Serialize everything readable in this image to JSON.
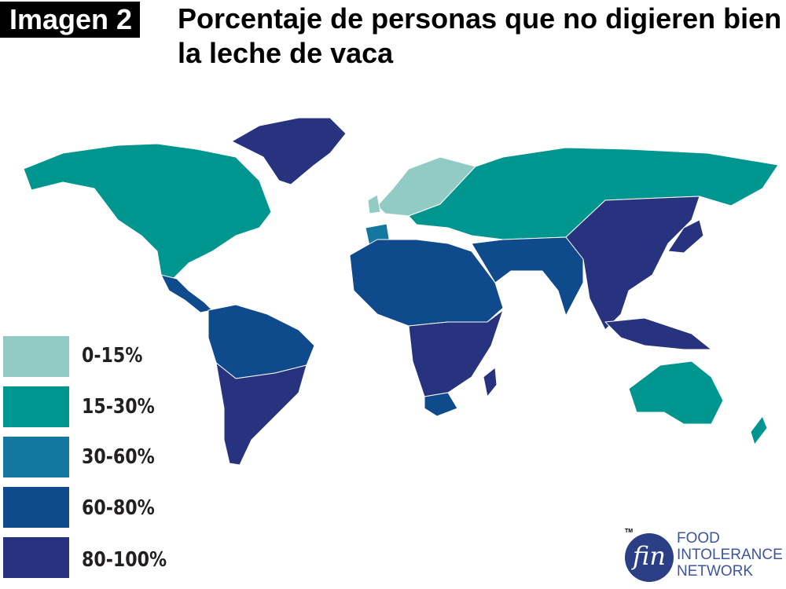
{
  "header": {
    "badge": "Imagen 2",
    "title": "Porcentaje de personas que no digieren bien la leche de vaca"
  },
  "legend": [
    {
      "label": "0-15%",
      "color": "#92cbc4"
    },
    {
      "label": "15-30%",
      "color": "#009690"
    },
    {
      "label": "30-60%",
      "color": "#13779f"
    },
    {
      "label": "60-80%",
      "color": "#0f4a8c"
    },
    {
      "label": "80-100%",
      "color": "#27337f"
    }
  ],
  "regions": [
    {
      "name": "north-america",
      "category": 1
    },
    {
      "name": "greenland",
      "category": 4
    },
    {
      "name": "central-america",
      "category": 3
    },
    {
      "name": "south-america-north",
      "category": 3
    },
    {
      "name": "south-america-south",
      "category": 4
    },
    {
      "name": "northern-europe",
      "category": 0
    },
    {
      "name": "british-isles",
      "category": 0
    },
    {
      "name": "russia-central-asia",
      "category": 1
    },
    {
      "name": "iberia",
      "category": 2
    },
    {
      "name": "north-africa",
      "category": 3
    },
    {
      "name": "middle-east-south-asia",
      "category": 3
    },
    {
      "name": "sub-saharan-africa",
      "category": 4
    },
    {
      "name": "southern-africa",
      "category": 3
    },
    {
      "name": "madagascar",
      "category": 4
    },
    {
      "name": "east-asia",
      "category": 4
    },
    {
      "name": "japan",
      "category": 4
    },
    {
      "name": "southeast-asia-islands",
      "category": 4
    },
    {
      "name": "australia",
      "category": 1
    },
    {
      "name": "new-zealand",
      "category": 1
    }
  ],
  "logo": {
    "mark": "fin",
    "tm": "TM",
    "line1": "FOOD",
    "line2": "INTOLERANCE",
    "line3": "NETWORK"
  }
}
